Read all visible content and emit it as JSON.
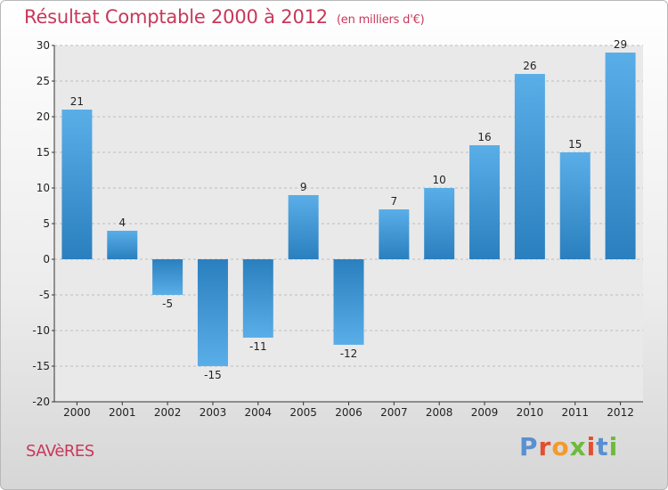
{
  "header": {
    "title": "Résultat Comptable 2000 à 2012",
    "subtitle": "(en milliers d'€)"
  },
  "footer": {
    "commune": "SAVèRES",
    "logo_letters": [
      "P",
      "r",
      "o",
      "x",
      "i",
      "t",
      "i"
    ]
  },
  "colors": {
    "title": "#c8385a",
    "bar_light": "#5aaee8",
    "bar_dark": "#2a7fbe",
    "logo": [
      "#5a8fd0",
      "#e2502e",
      "#f39a2b",
      "#6dbb3c",
      "#e2502e",
      "#5a8fd0",
      "#6dbb3c"
    ]
  },
  "chart_data": {
    "type": "bar",
    "title": "Résultat Comptable 2000 à 2012",
    "unit_label": "(en milliers d'€)",
    "categories": [
      "2000",
      "2001",
      "2002",
      "2003",
      "2004",
      "2005",
      "2006",
      "2007",
      "2008",
      "2009",
      "2010",
      "2011",
      "2012"
    ],
    "values": [
      21,
      4,
      -5,
      -15,
      -11,
      9,
      -12,
      7,
      10,
      16,
      26,
      15,
      29
    ],
    "ylim": [
      -20,
      30
    ],
    "yticks": [
      30,
      25,
      20,
      15,
      10,
      5,
      0,
      -5,
      -10,
      -15,
      -20
    ],
    "grid": true,
    "xlabel": "",
    "ylabel": ""
  }
}
